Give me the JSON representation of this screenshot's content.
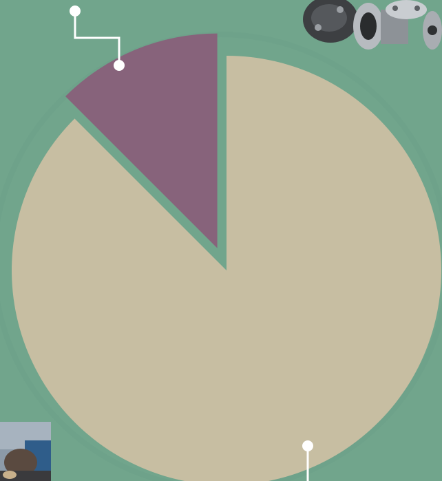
{
  "colors": {
    "background": "#71a58c",
    "background_ring": "#6da088",
    "leader": "#ffffff"
  },
  "chart_data": {
    "type": "pie",
    "title": "",
    "legend": "none",
    "start": "12 o'clock",
    "direction": "counterclockwise",
    "slices": [
      {
        "value": 87.5,
        "color": "#c7bea2",
        "exploded": false
      },
      {
        "value": 12.5,
        "color": "#87637b",
        "exploded": true
      }
    ]
  },
  "decorations": [
    {
      "icon": "industrial-valves-photo",
      "position": "top-right"
    },
    {
      "icon": "worker-photo",
      "position": "bottom-left"
    }
  ]
}
